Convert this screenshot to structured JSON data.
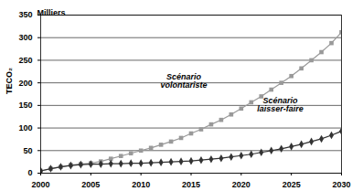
{
  "chart_data": {
    "type": "line",
    "ylabel": "TECO₂",
    "yunit": "Milliers",
    "x": [
      2000,
      2001,
      2002,
      2003,
      2004,
      2005,
      2006,
      2007,
      2008,
      2009,
      2010,
      2011,
      2012,
      2013,
      2014,
      2015,
      2016,
      2017,
      2018,
      2019,
      2020,
      2021,
      2022,
      2023,
      2024,
      2025,
      2026,
      2027,
      2028,
      2029,
      2030
    ],
    "series": [
      {
        "name": "Scénario volontariste",
        "color": "#999999",
        "marker": "square",
        "values": [
          5,
          10,
          14,
          18,
          20,
          22,
          26,
          32,
          38,
          44,
          50,
          56,
          63,
          70,
          78,
          88,
          97,
          108,
          118,
          130,
          143,
          157,
          170,
          185,
          200,
          215,
          232,
          250,
          268,
          288,
          312
        ]
      },
      {
        "name": "Scénario laisser-faire",
        "color": "#333333",
        "marker": "diamond",
        "values": [
          5,
          10,
          14,
          17,
          19,
          20,
          20,
          21,
          21,
          22,
          22,
          23,
          24,
          25,
          26,
          27,
          29,
          31,
          33,
          36,
          39,
          42,
          46,
          50,
          54,
          59,
          64,
          70,
          76,
          84,
          93
        ]
      }
    ],
    "xlim": [
      2000,
      2030
    ],
    "xticks": [
      2000,
      2005,
      2010,
      2015,
      2020,
      2025,
      2030
    ],
    "ylim": [
      0,
      350
    ],
    "yticks": [
      0,
      50,
      100,
      150,
      200,
      250,
      300,
      350
    ],
    "grid": true
  }
}
